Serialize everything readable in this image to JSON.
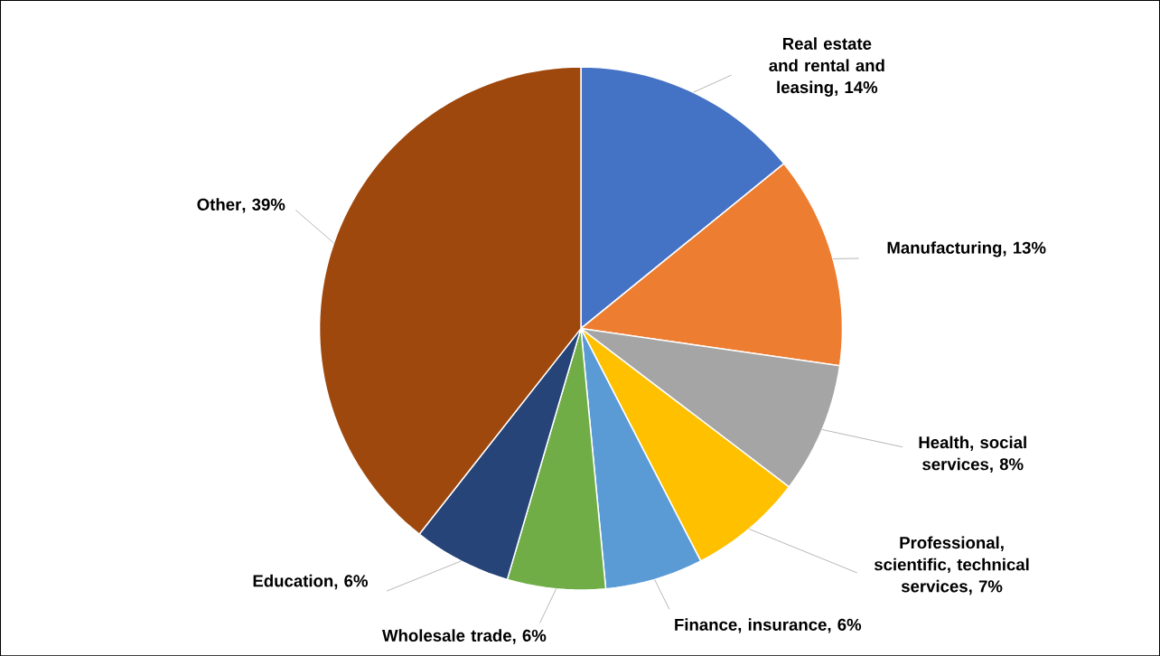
{
  "chart_data": {
    "type": "pie",
    "categories": [
      "Real estate and rental and leasing",
      "Manufacturing",
      "Health, social services",
      "Professional, scientific, technical services",
      "Finance, insurance",
      "Wholesale trade",
      "Education",
      "Other"
    ],
    "values": [
      14,
      13,
      8,
      7,
      6,
      6,
      6,
      39
    ],
    "value_labels": [
      ", 14%",
      ", 13%",
      ", 8%",
      ", 7%",
      ", 6%",
      ", 6%",
      ", 6%",
      ", 39%"
    ],
    "colors": [
      "#4472c4",
      "#ed7d31",
      "#a5a5a5",
      "#ffc000",
      "#5b9bd5",
      "#70ad47",
      "#264478",
      "#9e480e"
    ]
  }
}
